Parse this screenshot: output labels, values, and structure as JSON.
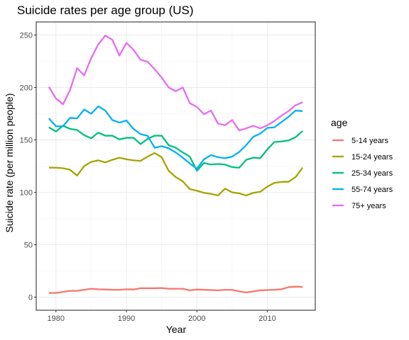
{
  "chart_data": {
    "type": "line",
    "title": "Suicide rates per age group (US)",
    "xlabel": "Year",
    "ylabel": "Suicide rate (per million people)",
    "xlim": [
      1977.2,
      2016.8
    ],
    "ylim": [
      -12.5,
      262.5
    ],
    "xticks": [
      1980,
      1990,
      2000,
      2010
    ],
    "yticks": [
      0,
      50,
      100,
      150,
      200,
      250
    ],
    "grid": true,
    "legend": {
      "title": "age",
      "position": "right"
    },
    "x": [
      1979,
      1980,
      1981,
      1982,
      1983,
      1984,
      1985,
      1986,
      1987,
      1988,
      1989,
      1990,
      1991,
      1992,
      1993,
      1994,
      1995,
      1996,
      1997,
      1998,
      1999,
      2000,
      2001,
      2002,
      2003,
      2004,
      2005,
      2006,
      2007,
      2008,
      2009,
      2010,
      2011,
      2012,
      2013,
      2014,
      2015
    ],
    "series": [
      {
        "name": "5-14 years",
        "color": "#F8766D",
        "values": [
          4,
          4,
          5,
          6,
          6,
          7,
          8,
          7.5,
          7.3,
          7,
          7,
          7.5,
          7.3,
          8.5,
          8.5,
          8.5,
          8.7,
          8,
          8,
          8,
          6.5,
          7.3,
          7,
          6.8,
          6.5,
          7,
          7,
          5.5,
          4.5,
          5.5,
          6.5,
          6.8,
          7,
          7.5,
          9.5,
          10,
          9.8
        ]
      },
      {
        "name": "15-24 years",
        "color": "#A3A500",
        "values": [
          123.5,
          123.5,
          123,
          121.5,
          116,
          125,
          129,
          130.5,
          128.5,
          131,
          133,
          131.5,
          130.5,
          130,
          134,
          137.5,
          133.5,
          120.5,
          114.5,
          110.5,
          103,
          101.5,
          99.5,
          98.5,
          97,
          103.5,
          100,
          99,
          97,
          99.5,
          100.5,
          105.5,
          109,
          110,
          110,
          114.5,
          123.5
        ]
      },
      {
        "name": "25-34 years",
        "color": "#00BF7D",
        "values": [
          162,
          158,
          163.5,
          160.5,
          159.5,
          154.5,
          151.5,
          157,
          154,
          154,
          150.5,
          152,
          152,
          146,
          151,
          154,
          154,
          145,
          142.5,
          138,
          134,
          120.5,
          128,
          126.5,
          127,
          126.5,
          124,
          123.5,
          131,
          133,
          132.5,
          141,
          148,
          148.5,
          149.5,
          152.5,
          158.5
        ]
      },
      {
        "name": "55-74 years",
        "color": "#00B0F6",
        "values": [
          170.5,
          163,
          163,
          171,
          170.5,
          179,
          175,
          182,
          178,
          169,
          166.5,
          168.5,
          160.5,
          155.5,
          154,
          142.5,
          144,
          142,
          138,
          133,
          127.5,
          122.5,
          131.5,
          135.5,
          133.5,
          132.5,
          134,
          138.5,
          145,
          153,
          156,
          161.5,
          162,
          167,
          172,
          178,
          177.5
        ]
      },
      {
        "name": "75+ years",
        "color": "#E76BF3",
        "values": [
          200.5,
          189.5,
          184,
          197.5,
          218.5,
          211.5,
          228,
          241,
          249.5,
          245.5,
          230.5,
          242.5,
          236,
          226.5,
          224.5,
          217.5,
          209.5,
          200,
          196.5,
          200,
          185,
          181.5,
          174.5,
          178,
          165.5,
          164,
          169,
          159,
          161,
          163.5,
          161,
          164,
          168,
          173,
          177.5,
          183,
          186
        ]
      }
    ]
  }
}
